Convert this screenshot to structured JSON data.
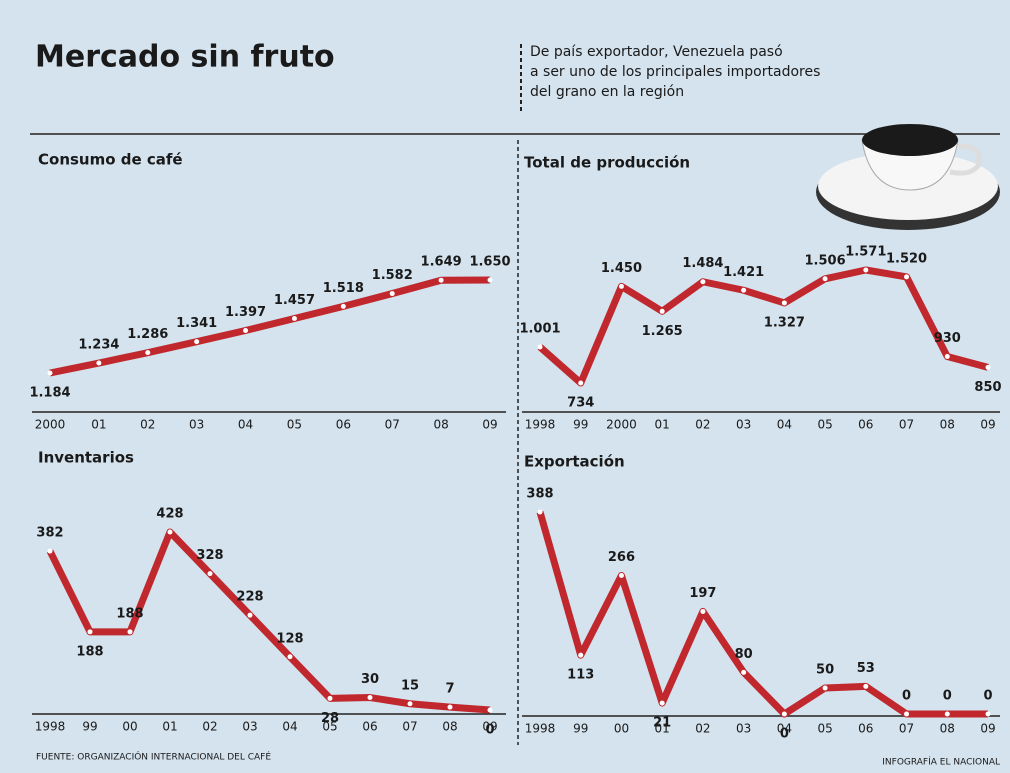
{
  "title": "Mercado sin fruto",
  "subtitle": [
    "De país exportador, Venezuela pasó",
    "a ser uno de los principales importadores",
    "del grano en la región"
  ],
  "source": "FUENTE: ORGANIZACIÓN INTERNACIONAL DEL CAFÉ",
  "credit": "INFOGRAFÍA EL NACIONAL",
  "chart_data": [
    {
      "type": "line",
      "title": "Consumo de café",
      "color": "#c0282d",
      "categories": [
        "2000",
        "01",
        "02",
        "03",
        "04",
        "05",
        "06",
        "07",
        "08",
        "09"
      ],
      "values": [
        1184,
        1234,
        1286,
        1341,
        1397,
        1457,
        1518,
        1582,
        1649,
        1650
      ],
      "value_labels": [
        "1.184",
        "1.234",
        "1.286",
        "1.341",
        "1.397",
        "1.457",
        "1.518",
        "1.582",
        "1.649",
        "1.650"
      ]
    },
    {
      "type": "line",
      "title": "Total de producción",
      "color": "#c0282d",
      "categories": [
        "1998",
        "99",
        "2000",
        "01",
        "02",
        "03",
        "04",
        "05",
        "06",
        "07",
        "08",
        "09"
      ],
      "values": [
        1001,
        734,
        1450,
        1265,
        1484,
        1421,
        1327,
        1506,
        1571,
        1520,
        930,
        850
      ],
      "value_labels": [
        "1.001",
        "734",
        "1.450",
        "1.265",
        "1.484",
        "1.421",
        "1.327",
        "1.506",
        "1.571",
        "1.520",
        "930",
        "850"
      ]
    },
    {
      "type": "line",
      "title": "Inventarios",
      "color": "#c0282d",
      "categories": [
        "1998",
        "99",
        "00",
        "01",
        "02",
        "03",
        "04",
        "05",
        "06",
        "07",
        "08",
        "09"
      ],
      "values": [
        382,
        188,
        188,
        428,
        328,
        228,
        128,
        28,
        30,
        15,
        7,
        0
      ]
    },
    {
      "type": "line",
      "title": "Exportación",
      "color": "#c0282d",
      "categories": [
        "1998",
        "99",
        "00",
        "01",
        "02",
        "03",
        "04",
        "05",
        "06",
        "07",
        "08",
        "09"
      ],
      "values": [
        388,
        113,
        266,
        21,
        197,
        80,
        0,
        50,
        53,
        0,
        0,
        0
      ]
    }
  ]
}
